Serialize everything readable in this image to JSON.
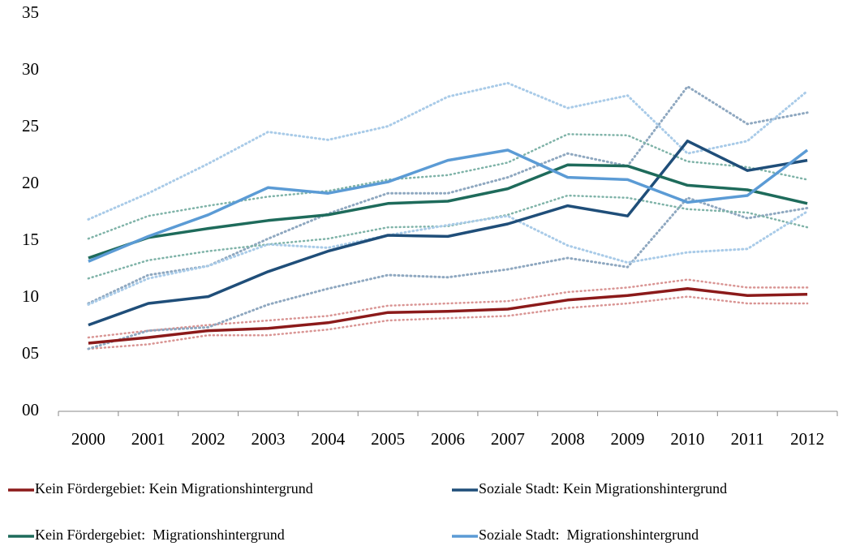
{
  "chart_data": {
    "type": "line",
    "categories": [
      "2000",
      "2001",
      "2002",
      "2003",
      "2004",
      "2005",
      "2006",
      "2007",
      "2008",
      "2009",
      "2010",
      "2011",
      "2012"
    ],
    "ylim": [
      0,
      35
    ],
    "yticks": [
      {
        "value": 0,
        "label": "00"
      },
      {
        "value": 5,
        "label": "05"
      },
      10,
      15,
      20,
      25,
      30,
      35
    ],
    "grid": false,
    "legend": "bottom",
    "series": [
      {
        "name": "Kein Fördergebiet: Kein Migrationshintergrund",
        "color": "#8b1a1a",
        "band_color": "#d99594",
        "values": [
          6.0,
          6.5,
          7.1,
          7.3,
          7.8,
          8.7,
          8.8,
          9.0,
          9.8,
          10.2,
          10.8,
          10.2,
          10.3
        ],
        "lower": [
          5.5,
          5.9,
          6.7,
          6.7,
          7.2,
          8.0,
          8.2,
          8.4,
          9.1,
          9.5,
          10.1,
          9.5,
          9.5
        ],
        "upper": [
          6.5,
          7.1,
          7.6,
          8.0,
          8.4,
          9.3,
          9.5,
          9.7,
          10.5,
          10.9,
          11.6,
          10.9,
          10.9
        ]
      },
      {
        "name": "Soziale Stadt: Kein Migrationshintergrund",
        "color": "#1f4e79",
        "band_color": "#8fa8c0",
        "values": [
          7.6,
          9.5,
          10.1,
          12.3,
          14.1,
          15.5,
          15.4,
          16.5,
          18.1,
          17.2,
          23.8,
          21.2,
          22.1
        ],
        "lower": [
          5.5,
          7.1,
          7.4,
          9.4,
          10.8,
          12.0,
          11.8,
          12.5,
          13.5,
          12.7,
          18.8,
          17.0,
          17.9
        ],
        "upper": [
          9.5,
          12.0,
          12.8,
          15.2,
          17.4,
          19.2,
          19.2,
          20.6,
          22.7,
          21.6,
          28.6,
          25.3,
          26.3
        ]
      },
      {
        "name": "Kein Fördergebiet:  Migrationshintergrund",
        "color": "#1e6b5b",
        "band_color": "#7fb3a8",
        "values": [
          13.5,
          15.3,
          16.1,
          16.8,
          17.3,
          18.3,
          18.5,
          19.6,
          21.7,
          21.6,
          19.9,
          19.5,
          18.3
        ],
        "lower": [
          11.7,
          13.3,
          14.1,
          14.7,
          15.2,
          16.2,
          16.3,
          17.3,
          19.0,
          18.8,
          17.8,
          17.5,
          16.2
        ],
        "upper": [
          15.2,
          17.2,
          18.1,
          18.9,
          19.4,
          20.4,
          20.8,
          21.9,
          24.4,
          24.3,
          22.0,
          21.5,
          20.4
        ]
      },
      {
        "name": "Soziale Stadt:  Migrationshintergrund",
        "color": "#5b9bd5",
        "band_color": "#a9cbe8",
        "values": [
          13.2,
          15.4,
          17.3,
          19.7,
          19.2,
          20.2,
          22.1,
          23.0,
          20.6,
          20.4,
          18.4,
          19.0,
          23.0
        ],
        "lower": [
          9.4,
          11.7,
          12.8,
          14.7,
          14.4,
          15.5,
          16.4,
          17.2,
          14.6,
          13.1,
          14.0,
          14.3,
          17.6
        ],
        "upper": [
          16.9,
          19.2,
          21.8,
          24.6,
          23.9,
          25.1,
          27.7,
          28.9,
          26.7,
          27.8,
          22.7,
          23.8,
          28.2
        ]
      }
    ]
  }
}
